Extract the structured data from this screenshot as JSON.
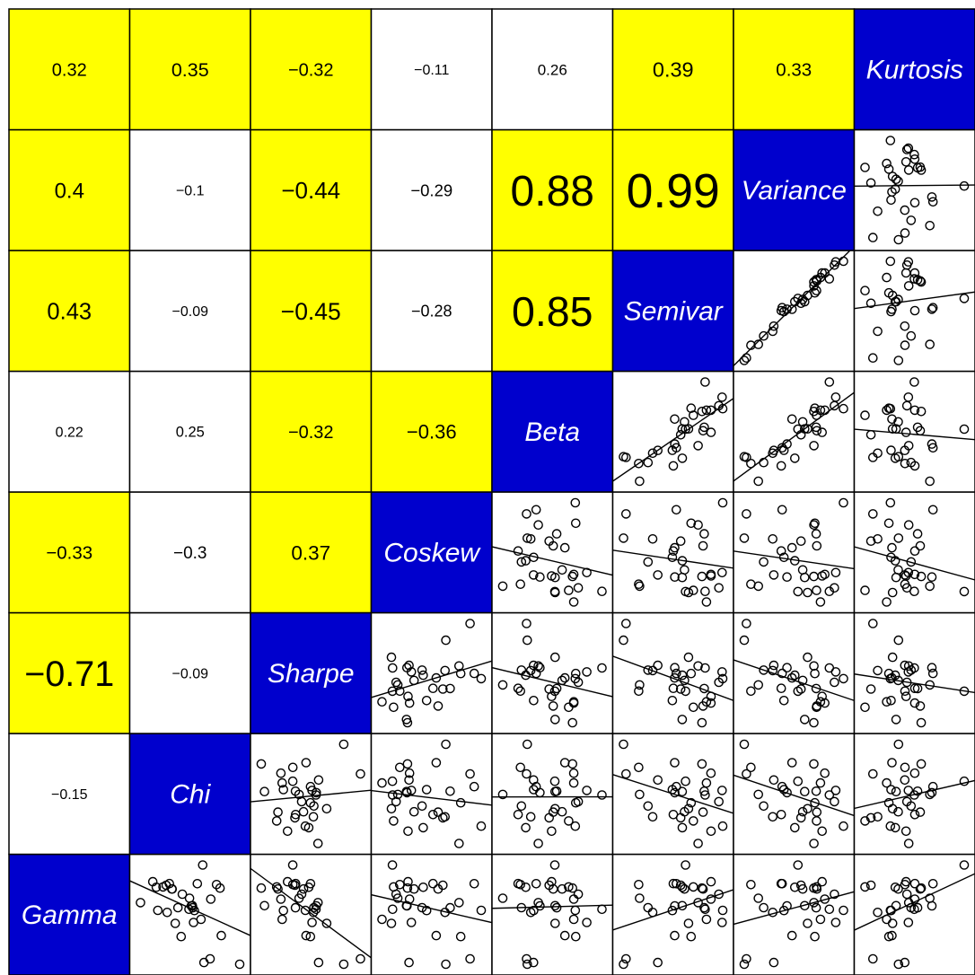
{
  "chart_data": {
    "type": "scatter",
    "variables": [
      "Gamma",
      "Chi",
      "Sharpe",
      "Coskew",
      "Beta",
      "Semivar",
      "Variance",
      "Kurtosis"
    ],
    "labels": [
      "Gamma",
      "Chi",
      "Sharpe",
      "Coskew",
      "Beta",
      "Semivar",
      "Variance",
      "Kurtosis"
    ],
    "highlight_threshold_abs": 0.3,
    "correlation_labels": [
      {
        "row": "Chi",
        "col": "Gamma",
        "text": "−0.15"
      },
      {
        "row": "Sharpe",
        "col": "Gamma",
        "text": "−0.71"
      },
      {
        "row": "Sharpe",
        "col": "Chi",
        "text": "−0.09"
      },
      {
        "row": "Coskew",
        "col": "Gamma",
        "text": "−0.33"
      },
      {
        "row": "Coskew",
        "col": "Chi",
        "text": "−0.3"
      },
      {
        "row": "Coskew",
        "col": "Sharpe",
        "text": "0.37"
      },
      {
        "row": "Beta",
        "col": "Gamma",
        "text": "0.22"
      },
      {
        "row": "Beta",
        "col": "Chi",
        "text": "0.25"
      },
      {
        "row": "Beta",
        "col": "Sharpe",
        "text": "−0.32"
      },
      {
        "row": "Beta",
        "col": "Coskew",
        "text": "−0.36"
      },
      {
        "row": "Semivar",
        "col": "Gamma",
        "text": "0.43"
      },
      {
        "row": "Semivar",
        "col": "Chi",
        "text": "−0.09"
      },
      {
        "row": "Semivar",
        "col": "Sharpe",
        "text": "−0.45"
      },
      {
        "row": "Semivar",
        "col": "Coskew",
        "text": "−0.28"
      },
      {
        "row": "Semivar",
        "col": "Beta",
        "text": "0.85"
      },
      {
        "row": "Variance",
        "col": "Gamma",
        "text": "0.4"
      },
      {
        "row": "Variance",
        "col": "Chi",
        "text": "−0.1"
      },
      {
        "row": "Variance",
        "col": "Sharpe",
        "text": "−0.44"
      },
      {
        "row": "Variance",
        "col": "Coskew",
        "text": "−0.29"
      },
      {
        "row": "Variance",
        "col": "Beta",
        "text": "0.88"
      },
      {
        "row": "Variance",
        "col": "Semivar",
        "text": "0.99"
      },
      {
        "row": "Kurtosis",
        "col": "Gamma",
        "text": "0.32"
      },
      {
        "row": "Kurtosis",
        "col": "Chi",
        "text": "0.35"
      },
      {
        "row": "Kurtosis",
        "col": "Sharpe",
        "text": "−0.32"
      },
      {
        "row": "Kurtosis",
        "col": "Coskew",
        "text": "−0.11"
      },
      {
        "row": "Kurtosis",
        "col": "Beta",
        "text": "0.26"
      },
      {
        "row": "Kurtosis",
        "col": "Semivar",
        "text": "0.39"
      },
      {
        "row": "Kurtosis",
        "col": "Variance",
        "text": "0.33"
      }
    ],
    "colors": {
      "diagonal_fill": "#0000CD",
      "diagonal_text": "#FFFFFF",
      "highlight_fill": "#FFFF00",
      "plain_fill": "#FFFFFF",
      "text": "#000000",
      "point_stroke": "#000000",
      "grid": "#000000"
    },
    "marker": "open-circle",
    "regression_line": true,
    "grid": true,
    "legend": "none",
    "sample_size": 31
  }
}
